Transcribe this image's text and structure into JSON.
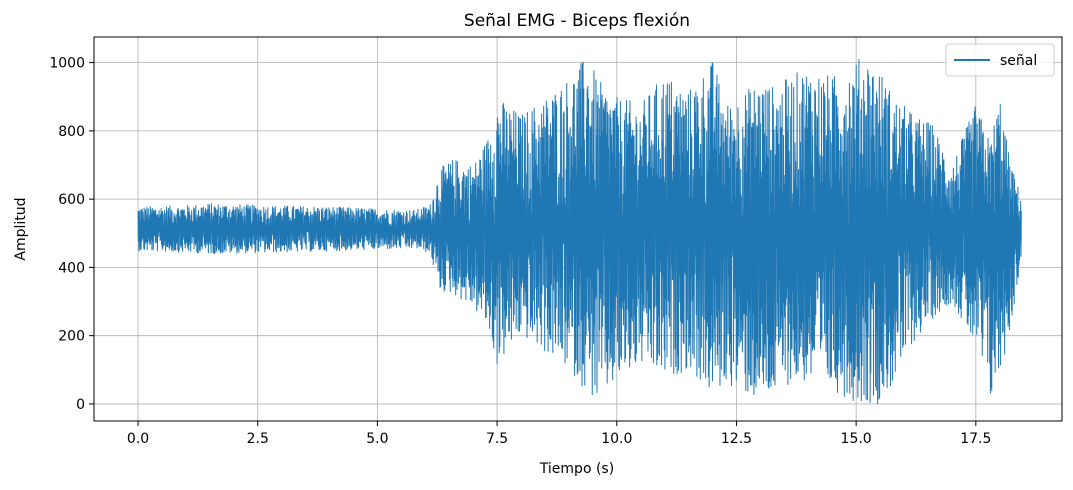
{
  "chart_data": {
    "type": "line",
    "title": "Señal EMG - Biceps flexión",
    "xlabel": "Tiempo (s)",
    "ylabel": "Amplitud",
    "xlim": [
      -0.92,
      19.3
    ],
    "ylim": [
      -50,
      1075
    ],
    "x_ticks": [
      0.0,
      2.5,
      5.0,
      7.5,
      10.0,
      12.5,
      15.0,
      17.5
    ],
    "x_tick_labels": [
      "0.0",
      "2.5",
      "5.0",
      "7.5",
      "10.0",
      "12.5",
      "15.0",
      "17.5"
    ],
    "y_ticks": [
      0,
      200,
      400,
      600,
      800,
      1000
    ],
    "y_tick_labels": [
      "0",
      "200",
      "400",
      "600",
      "800",
      "1000"
    ],
    "grid": true,
    "legend": {
      "position": "top-right",
      "entries": [
        "señal"
      ]
    },
    "series": [
      {
        "name": "señal",
        "color": "#1f77b4",
        "x_start": 0.0,
        "x_end": 18.45,
        "baseline": 512,
        "envelope": {
          "t": [
            0.0,
            1.0,
            1.5,
            2.5,
            4.0,
            5.0,
            5.8,
            6.1,
            6.3,
            6.6,
            7.0,
            7.3,
            7.5,
            8.0,
            8.5,
            9.0,
            9.4,
            9.6,
            10.0,
            10.5,
            11.0,
            11.5,
            12.0,
            12.3,
            12.5,
            13.0,
            13.3,
            13.6,
            14.0,
            14.5,
            14.9,
            15.2,
            15.5,
            15.8,
            16.2,
            16.6,
            17.0,
            17.5,
            17.8,
            18.0,
            18.2,
            18.45
          ],
          "upper": [
            578,
            582,
            588,
            582,
            578,
            572,
            568,
            585,
            690,
            720,
            700,
            780,
            900,
            850,
            900,
            960,
            1025,
            950,
            900,
            880,
            970,
            920,
            1010,
            880,
            900,
            950,
            930,
            960,
            990,
            960,
            1000,
            1025,
            980,
            900,
            850,
            820,
            700,
            880,
            770,
            910,
            720,
            605
          ],
          "lower": [
            448,
            444,
            440,
            442,
            448,
            452,
            455,
            440,
            330,
            320,
            280,
            220,
            110,
            200,
            150,
            100,
            30,
            0,
            60,
            110,
            70,
            100,
            20,
            60,
            40,
            0,
            20,
            60,
            60,
            40,
            10,
            0,
            0,
            60,
            180,
            250,
            300,
            160,
            0,
            80,
            200,
            420
          ]
        }
      }
    ]
  }
}
